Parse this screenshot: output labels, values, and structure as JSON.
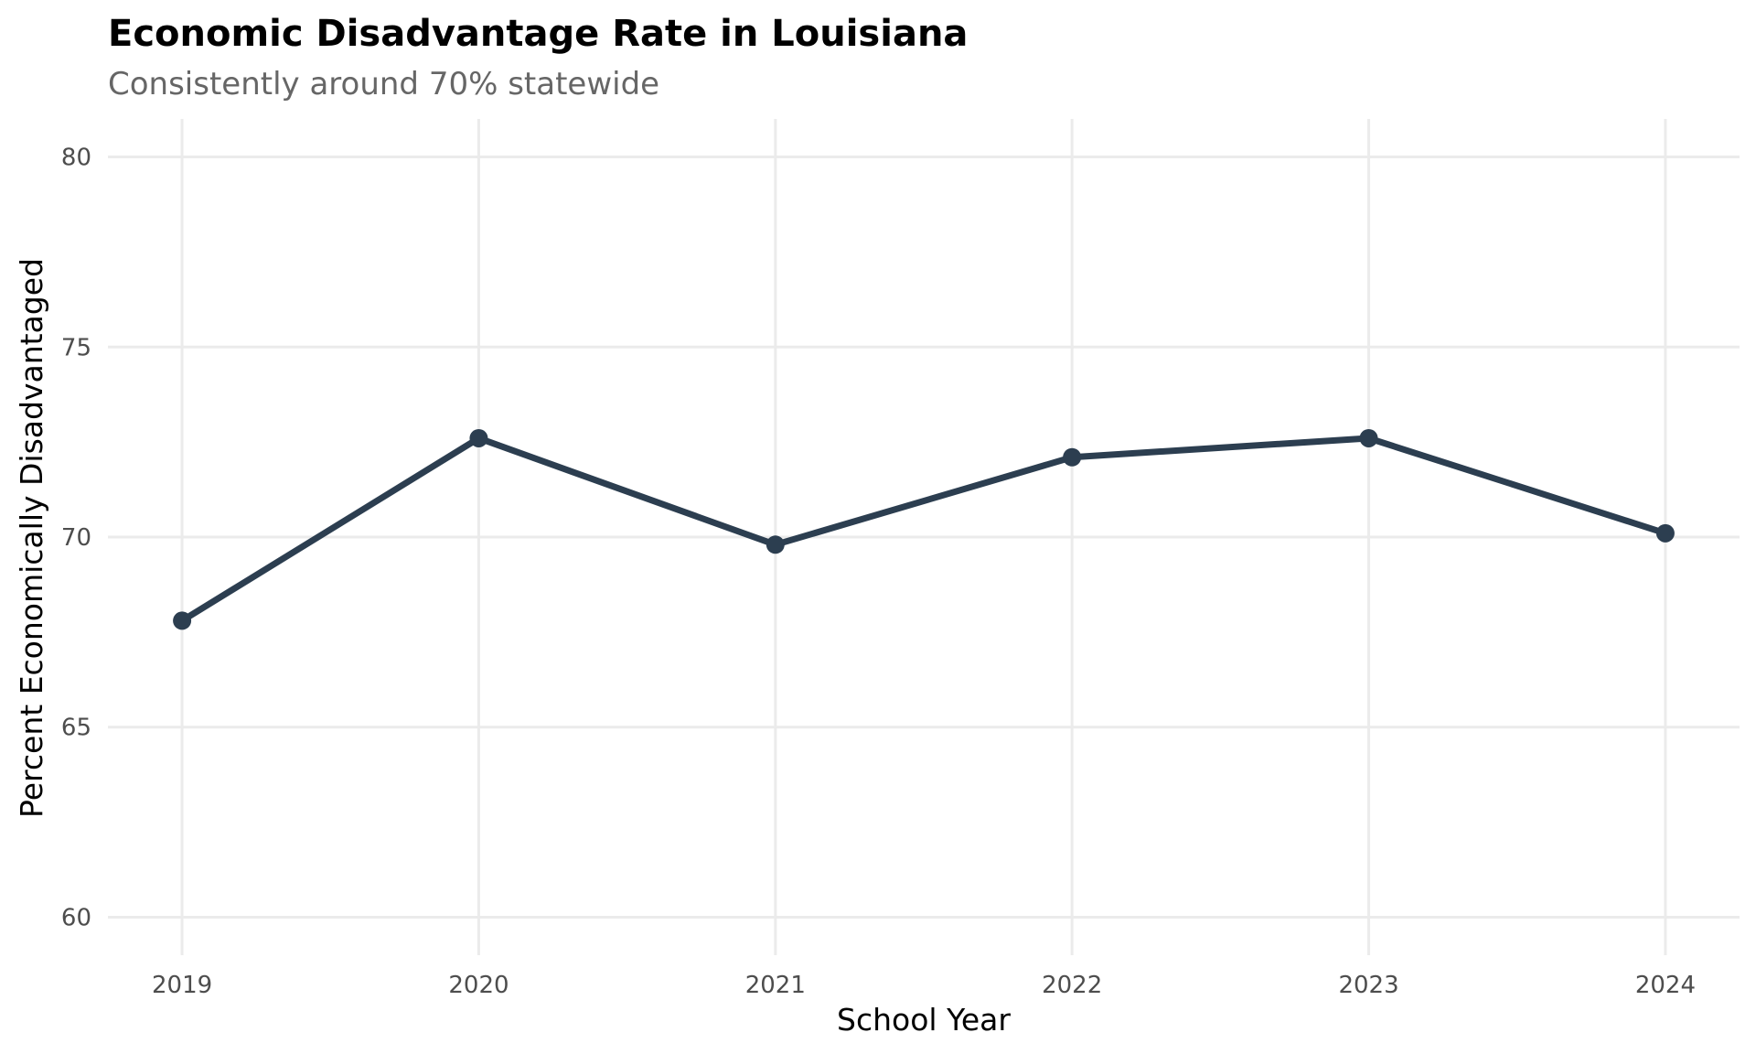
{
  "chart_data": {
    "type": "line",
    "title": "Economic Disadvantage Rate in Louisiana",
    "subtitle": "Consistently around 70% statewide",
    "xlabel": "School Year",
    "ylabel": "Percent Economically Disadvantaged",
    "x": [
      2019,
      2020,
      2021,
      2022,
      2023,
      2024
    ],
    "x_tick_labels": [
      "2019",
      "2020",
      "2021",
      "2022",
      "2023",
      "2024"
    ],
    "y_ticks": [
      60,
      65,
      70,
      75,
      80
    ],
    "y_tick_labels": [
      "60",
      "65",
      "70",
      "75",
      "80"
    ],
    "ylim": [
      59,
      81
    ],
    "xlim": [
      2018.75,
      2024.25
    ],
    "grid": true,
    "legend": "none",
    "series": [
      {
        "name": "Louisiana",
        "color": "#2c3e50",
        "values": [
          67.8,
          72.6,
          69.8,
          72.1,
          72.6,
          70.1
        ]
      }
    ]
  }
}
